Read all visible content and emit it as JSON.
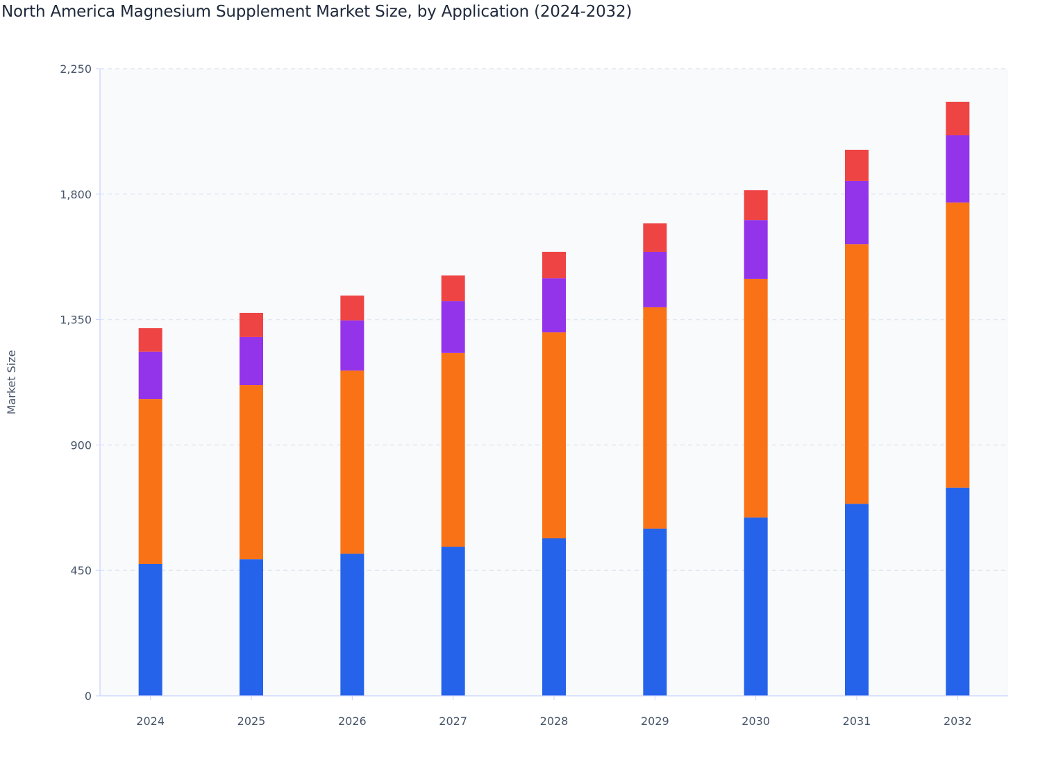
{
  "chart_data": {
    "type": "bar",
    "stacked": true,
    "title": "North America Magnesium Supplement Market Size, by Application (2024-2032)",
    "xlabel": "",
    "ylabel": "Market Size",
    "ylim": [
      0,
      2250
    ],
    "yticks": [
      0,
      450,
      900,
      1350,
      1800,
      2250
    ],
    "ytick_labels": [
      "0",
      "450",
      "900",
      "1,350",
      "1,800",
      "2,250"
    ],
    "grid": true,
    "legend": "none",
    "categories": [
      "2024",
      "2025",
      "2026",
      "2027",
      "2028",
      "2029",
      "2030",
      "2031",
      "2032"
    ],
    "series": [
      {
        "color": "#2563eb",
        "values": [
          473,
          490,
          510,
          535,
          565,
          600,
          640,
          689,
          747
        ]
      },
      {
        "color": "#f97316",
        "values": [
          592,
          625,
          657,
          695,
          739,
          794,
          856,
          931,
          1023
        ]
      },
      {
        "color": "#9333ea",
        "values": [
          170,
          172,
          180,
          186,
          194,
          199,
          211,
          227,
          241
        ]
      },
      {
        "color": "#ef4444",
        "values": [
          84,
          87,
          89,
          92,
          95,
          102,
          107,
          112,
          120
        ]
      }
    ]
  }
}
